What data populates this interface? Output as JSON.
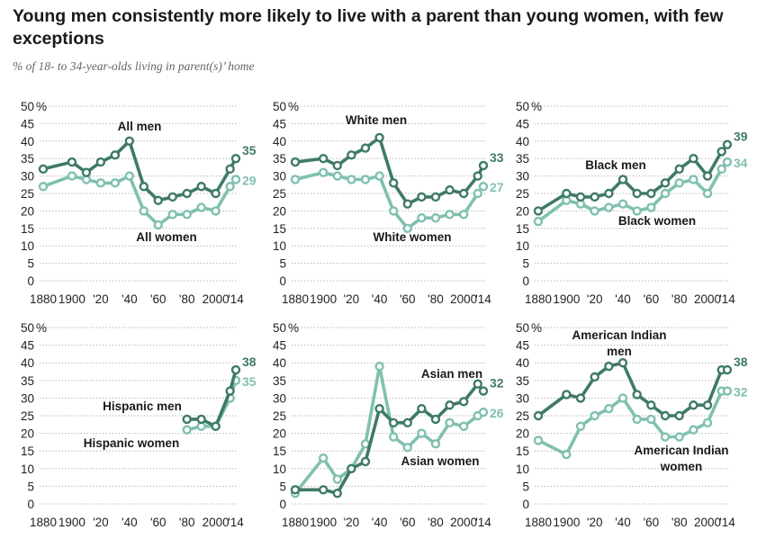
{
  "title": "Young men consistently more likely to live with a parent than young women, with few exceptions",
  "subtitle": "% of 18- to 34-year-olds living in parent(s)’ home",
  "colors": {
    "men": "#3f7a66",
    "women": "#80c0b0",
    "grid": "#b8b8b8"
  },
  "y_ticks": [
    "50",
    "45",
    "40",
    "35",
    "30",
    "25",
    "20",
    "15",
    "10",
    "5",
    "0"
  ],
  "y_unit": "%",
  "x_ticks": [
    "1880",
    "1900",
    "'20",
    "'40",
    "'60",
    "'80",
    "2000",
    "'14"
  ],
  "chart_data": [
    {
      "type": "line",
      "ylim": [
        0,
        50
      ],
      "xlim": [
        1880,
        2014
      ],
      "series": [
        {
          "name": "All men",
          "color": "#3f7a66",
          "end_label": "35",
          "x": [
            1880,
            1900,
            1910,
            1920,
            1930,
            1940,
            1950,
            1960,
            1970,
            1980,
            1990,
            2000,
            2010,
            2014
          ],
          "y": [
            32,
            34,
            31,
            34,
            36,
            40,
            27,
            23,
            24,
            25,
            27,
            25,
            32,
            35
          ]
        },
        {
          "name": "All women",
          "color": "#80c0b0",
          "end_label": "29",
          "x": [
            1880,
            1900,
            1910,
            1920,
            1930,
            1940,
            1950,
            1960,
            1970,
            1980,
            1990,
            2000,
            2010,
            2014
          ],
          "y": [
            27,
            30,
            29,
            28,
            28,
            30,
            20,
            16,
            19,
            19,
            21,
            20,
            27,
            29
          ]
        }
      ]
    },
    {
      "type": "line",
      "ylim": [
        0,
        50
      ],
      "xlim": [
        1880,
        2014
      ],
      "series": [
        {
          "name": "White men",
          "color": "#3f7a66",
          "end_label": "33",
          "x": [
            1880,
            1900,
            1910,
            1920,
            1930,
            1940,
            1950,
            1960,
            1970,
            1980,
            1990,
            2000,
            2010,
            2014
          ],
          "y": [
            34,
            35,
            33,
            36,
            38,
            41,
            28,
            22,
            24,
            24,
            26,
            25,
            30,
            33
          ]
        },
        {
          "name": "White women",
          "color": "#80c0b0",
          "end_label": "27",
          "x": [
            1880,
            1900,
            1910,
            1920,
            1930,
            1940,
            1950,
            1960,
            1970,
            1980,
            1990,
            2000,
            2010,
            2014
          ],
          "y": [
            29,
            31,
            30,
            29,
            29,
            30,
            20,
            15,
            18,
            18,
            19,
            19,
            25,
            27
          ]
        }
      ]
    },
    {
      "type": "line",
      "ylim": [
        0,
        50
      ],
      "xlim": [
        1880,
        2014
      ],
      "series": [
        {
          "name": "Black men",
          "color": "#3f7a66",
          "end_label": "39",
          "x": [
            1880,
            1900,
            1910,
            1920,
            1930,
            1940,
            1950,
            1960,
            1970,
            1980,
            1990,
            2000,
            2010,
            2014
          ],
          "y": [
            20,
            25,
            24,
            24,
            25,
            29,
            25,
            25,
            28,
            32,
            35,
            30,
            37,
            39
          ]
        },
        {
          "name": "Black women",
          "color": "#80c0b0",
          "end_label": "34",
          "x": [
            1880,
            1900,
            1910,
            1920,
            1930,
            1940,
            1950,
            1960,
            1970,
            1980,
            1990,
            2000,
            2010,
            2014
          ],
          "y": [
            17,
            23,
            22,
            20,
            21,
            22,
            20,
            21,
            25,
            28,
            29,
            25,
            32,
            34
          ]
        }
      ]
    },
    {
      "type": "line",
      "ylim": [
        0,
        50
      ],
      "xlim": [
        1880,
        2014
      ],
      "series": [
        {
          "name": "Hispanic men",
          "color": "#3f7a66",
          "end_label": "38",
          "x": [
            1980,
            1990,
            2000,
            2010,
            2014
          ],
          "y": [
            24,
            24,
            22,
            32,
            38
          ]
        },
        {
          "name": "Hispanic women",
          "color": "#80c0b0",
          "end_label": "35",
          "x": [
            1980,
            1990,
            2000,
            2010,
            2014
          ],
          "y": [
            21,
            22,
            22,
            30,
            35
          ]
        }
      ]
    },
    {
      "type": "line",
      "ylim": [
        0,
        50
      ],
      "xlim": [
        1880,
        2014
      ],
      "series": [
        {
          "name": "Asian men",
          "color": "#3f7a66",
          "end_label": "32",
          "x": [
            1880,
            1900,
            1910,
            1920,
            1930,
            1940,
            1950,
            1960,
            1970,
            1980,
            1990,
            2000,
            2010,
            2014
          ],
          "y": [
            4,
            4,
            3,
            10,
            12,
            27,
            23,
            23,
            27,
            24,
            28,
            29,
            34,
            32
          ]
        },
        {
          "name": "Asian women",
          "color": "#80c0b0",
          "end_label": "26",
          "x": [
            1880,
            1900,
            1910,
            1920,
            1930,
            1940,
            1950,
            1960,
            1970,
            1980,
            1990,
            2000,
            2010,
            2014
          ],
          "y": [
            3,
            13,
            7,
            10,
            17,
            39,
            19,
            16,
            20,
            17,
            23,
            22,
            25,
            26
          ]
        }
      ]
    },
    {
      "type": "line",
      "ylim": [
        0,
        50
      ],
      "xlim": [
        1880,
        2014
      ],
      "series": [
        {
          "name": "American Indian men",
          "color": "#3f7a66",
          "end_label": "38",
          "x": [
            1880,
            1900,
            1910,
            1920,
            1930,
            1940,
            1950,
            1960,
            1970,
            1980,
            1990,
            2000,
            2010,
            2014
          ],
          "y": [
            25,
            31,
            30,
            36,
            39,
            40,
            31,
            28,
            25,
            25,
            28,
            28,
            38,
            38
          ]
        },
        {
          "name": "American Indian women",
          "color": "#80c0b0",
          "end_label": "32",
          "x": [
            1880,
            1900,
            1910,
            1920,
            1930,
            1940,
            1950,
            1960,
            1970,
            1980,
            1990,
            2000,
            2010,
            2014
          ],
          "y": [
            18,
            14,
            22,
            25,
            27,
            30,
            24,
            24,
            19,
            19,
            21,
            23,
            32,
            32
          ]
        }
      ]
    }
  ],
  "annotations": [
    [
      {
        "lines": [
          "All men"
        ]
      },
      {
        "lines": [
          "All women"
        ]
      }
    ],
    [
      {
        "lines": [
          "White men"
        ]
      },
      {
        "lines": [
          "White women"
        ]
      }
    ],
    [
      {
        "lines": [
          "Black men"
        ]
      },
      {
        "lines": [
          "Black women"
        ]
      }
    ],
    [
      {
        "lines": [
          "Hispanic men"
        ]
      },
      {
        "lines": [
          "Hispanic women"
        ]
      }
    ],
    [
      {
        "lines": [
          "Asian men"
        ]
      },
      {
        "lines": [
          "Asian women"
        ]
      }
    ],
    [
      {
        "lines": [
          "American Indian",
          "men"
        ]
      },
      {
        "lines": [
          "American Indian",
          "women"
        ]
      }
    ]
  ]
}
